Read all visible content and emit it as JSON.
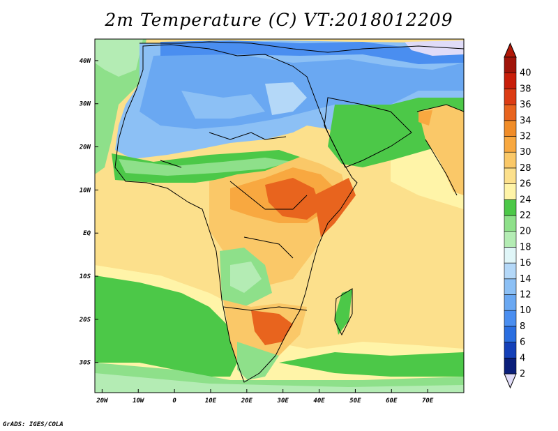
{
  "title": "2m Temperature (C) VT:2018012209",
  "credit": "GrADS: IGES/COLA",
  "map": {
    "lon_range": [
      -22,
      80
    ],
    "lat_range": [
      -37,
      45
    ],
    "lon_ticks": [
      {
        "value": -20,
        "label": "20W"
      },
      {
        "value": -10,
        "label": "10W"
      },
      {
        "value": 0,
        "label": "0"
      },
      {
        "value": 10,
        "label": "10E"
      },
      {
        "value": 20,
        "label": "20E"
      },
      {
        "value": 30,
        "label": "30E"
      },
      {
        "value": 40,
        "label": "40E"
      },
      {
        "value": 50,
        "label": "50E"
      },
      {
        "value": 60,
        "label": "60E"
      },
      {
        "value": 70,
        "label": "70E"
      }
    ],
    "lat_ticks": [
      {
        "value": 40,
        "label": "40N"
      },
      {
        "value": 30,
        "label": "30N"
      },
      {
        "value": 20,
        "label": "20N"
      },
      {
        "value": 10,
        "label": "10N"
      },
      {
        "value": 0,
        "label": "EQ"
      },
      {
        "value": -10,
        "label": "10S"
      },
      {
        "value": -20,
        "label": "20S"
      },
      {
        "value": -30,
        "label": "30S"
      }
    ]
  },
  "colorbar": {
    "levels": [
      "2",
      "4",
      "6",
      "8",
      "10",
      "12",
      "14",
      "16",
      "18",
      "20",
      "22",
      "24",
      "26",
      "28",
      "30",
      "32",
      "34",
      "36",
      "38",
      "40"
    ],
    "colors": [
      "#0a1e7a",
      "#1440b8",
      "#2a6ee0",
      "#4a8ef0",
      "#6aa8f2",
      "#8cc0f5",
      "#b4d8f8",
      "#e0f6f8",
      "#b4ecb4",
      "#8ee08a",
      "#4cc848",
      "#fff4a8",
      "#fce08c",
      "#fac868",
      "#f8a840",
      "#f08c28",
      "#e8641e",
      "#dc3c14",
      "#c81e0a",
      "#a0140a"
    ],
    "under_color": "#e0dcf8",
    "over_color": "#b01808"
  }
}
